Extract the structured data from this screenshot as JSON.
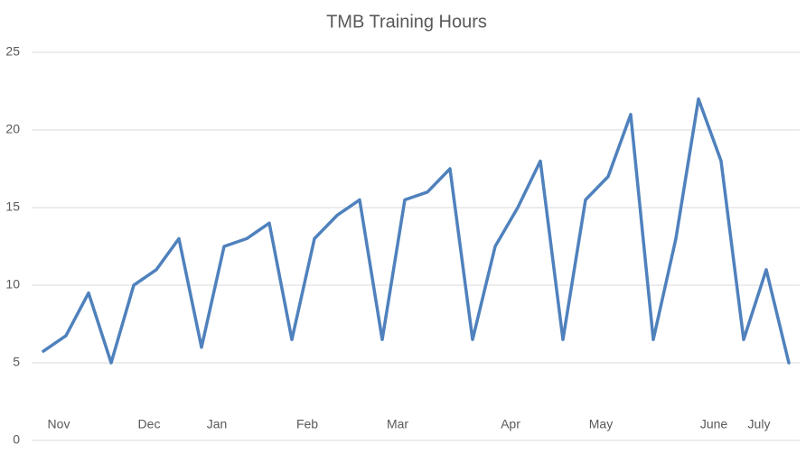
{
  "chart_data": {
    "type": "line",
    "title": "TMB Training Hours",
    "categories": [
      null,
      "Nov",
      null,
      null,
      null,
      "Dec",
      null,
      null,
      "Jan",
      null,
      null,
      null,
      "Feb",
      null,
      null,
      null,
      "Mar",
      null,
      null,
      null,
      null,
      "Apr",
      null,
      null,
      null,
      "May",
      null,
      null,
      null,
      null,
      "June",
      null,
      "July",
      null
    ],
    "series": [
      {
        "name": "Training Hours",
        "color": "#4f81bd",
        "values": [
          5.75,
          6.75,
          9.5,
          5,
          10,
          11,
          13,
          6,
          12.5,
          13,
          14,
          6.5,
          13,
          14.5,
          15.5,
          6.5,
          15.5,
          16,
          17.5,
          6.5,
          12.5,
          15,
          18,
          6.5,
          15.5,
          17,
          21,
          6.5,
          13,
          22,
          18,
          6.5,
          11,
          5
        ]
      }
    ],
    "ylim": [
      0,
      25
    ],
    "yticks": [
      0,
      5,
      10,
      15,
      20,
      25
    ],
    "grid": true
  }
}
